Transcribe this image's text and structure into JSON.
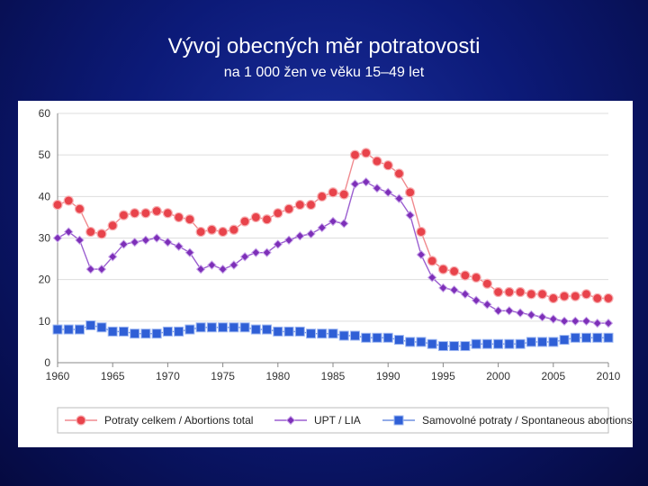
{
  "slide": {
    "title": "Vývoj obecných měr potratovosti",
    "subtitle": "na 1 000 žen ve věku 15–49 let"
  },
  "chart_data": {
    "type": "line",
    "title": "Vývoj obecných měr potratovosti",
    "subtitle": "na 1 000 žen ve věku 15–49 let",
    "xlabel": "",
    "ylabel": "",
    "xlim": [
      1960,
      2010
    ],
    "ylim": [
      0,
      60
    ],
    "x_ticks": [
      "1960",
      "1965",
      "1970",
      "1975",
      "1980",
      "1985",
      "1990",
      "1995",
      "2000",
      "2005",
      "2010"
    ],
    "y_ticks": [
      "0",
      "10",
      "20",
      "30",
      "40",
      "50",
      "60"
    ],
    "grid": true,
    "legend_position": "bottom",
    "x": [
      1960,
      1961,
      1962,
      1963,
      1964,
      1965,
      1966,
      1967,
      1968,
      1969,
      1970,
      1971,
      1972,
      1973,
      1974,
      1975,
      1976,
      1977,
      1978,
      1979,
      1980,
      1981,
      1982,
      1983,
      1984,
      1985,
      1986,
      1987,
      1988,
      1989,
      1990,
      1991,
      1992,
      1993,
      1994,
      1995,
      1996,
      1997,
      1998,
      1999,
      2000,
      2001,
      2002,
      2003,
      2004,
      2005,
      2006,
      2007,
      2008,
      2009,
      2010
    ],
    "series": [
      {
        "name": "Potraty celkem / Abortions total",
        "color": "#e8434b",
        "marker": "circle",
        "values": [
          38,
          39,
          37,
          31.5,
          31,
          33,
          35.5,
          36,
          36,
          36.5,
          36,
          35,
          34.5,
          31.5,
          32,
          31.5,
          32,
          34,
          35,
          34.5,
          36,
          37,
          38,
          38,
          40,
          41,
          40.5,
          50,
          50.5,
          48.5,
          47.5,
          45.5,
          41,
          31.5,
          24.5,
          22.5,
          22,
          21,
          20.5,
          19,
          17,
          17,
          17,
          16.5,
          16.5,
          15.5,
          16,
          16,
          16.5,
          15.5,
          15.5
        ]
      },
      {
        "name": "UPT / LIA",
        "color": "#7d2fb8",
        "marker": "diamond",
        "values": [
          30,
          31.5,
          29.5,
          22.5,
          22.5,
          25.5,
          28.5,
          29,
          29.5,
          30,
          29,
          28,
          26.5,
          22.5,
          23.5,
          22.5,
          23.5,
          25.5,
          26.5,
          26.5,
          28.5,
          29.5,
          30.5,
          31,
          32.5,
          34,
          33.5,
          43,
          43.5,
          42,
          41,
          39.5,
          35.5,
          26,
          20.5,
          18,
          17.5,
          16.5,
          15,
          14,
          12.5,
          12.5,
          12,
          11.5,
          11,
          10.5,
          10,
          10,
          10,
          9.5,
          9.5
        ]
      },
      {
        "name": "Samovolné potraty / Spontaneous abortions",
        "color": "#2f5fd6",
        "marker": "square",
        "values": [
          8,
          8,
          8,
          9,
          8.5,
          7.5,
          7.5,
          7,
          7,
          7,
          7.5,
          7.5,
          8,
          8.5,
          8.5,
          8.5,
          8.5,
          8.5,
          8,
          8,
          7.5,
          7.5,
          7.5,
          7,
          7,
          7,
          6.5,
          6.5,
          6,
          6,
          6,
          5.5,
          5,
          5,
          4.5,
          4,
          4,
          4,
          4.5,
          4.5,
          4.5,
          4.5,
          4.5,
          5,
          5,
          5,
          5.5,
          6,
          6,
          6,
          6
        ]
      }
    ]
  }
}
